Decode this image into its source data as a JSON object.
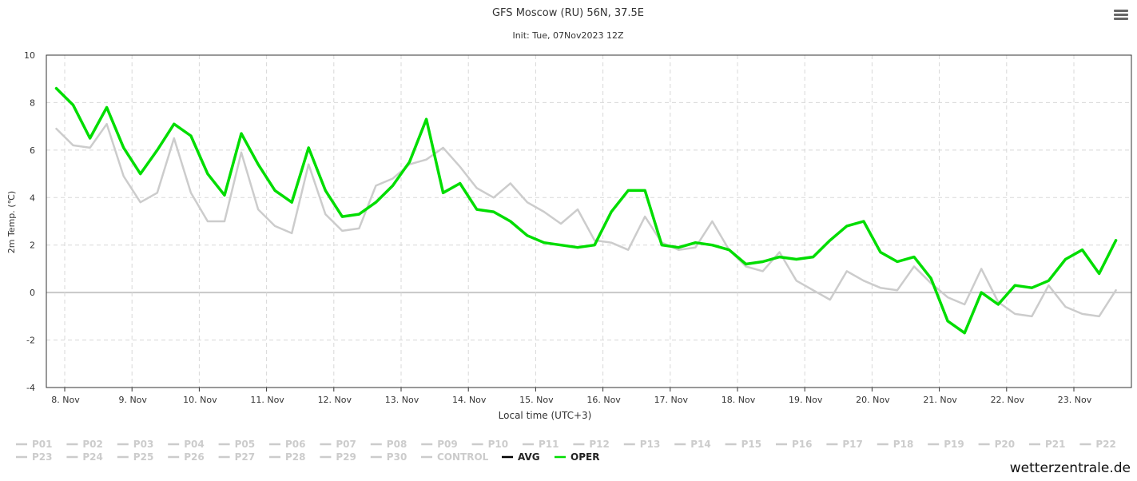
{
  "title": "GFS Moscow (RU) 56N, 37.5E",
  "subtitle": "Init: Tue, 07Nov2023 12Z",
  "watermark": "wetterzentrale.de",
  "menu_icon": "hamburger-menu-icon",
  "colors": {
    "oper": "#00dd00",
    "control": "#cccccc",
    "avg": "#000000",
    "member_legend": "#cccccc",
    "grid": "#d8d8d8",
    "zero_line": "#c8c8c8"
  },
  "chart_data": {
    "type": "line",
    "title": "GFS Moscow (RU) 56N, 37.5E",
    "subtitle": "Init: Tue, 07Nov2023 12Z",
    "xlabel": "Local time (UTC+3)",
    "ylabel": "2m Temp. (℃)",
    "ylim": [
      -4,
      10
    ],
    "yticks": [
      -4,
      -2,
      0,
      2,
      4,
      6,
      8,
      10
    ],
    "x_ticks": [
      "8. Nov",
      "9. Nov",
      "10. Nov",
      "11. Nov",
      "12. Nov",
      "13. Nov",
      "14. Nov",
      "15. Nov",
      "16. Nov",
      "17. Nov",
      "18. Nov",
      "19. Nov",
      "20. Nov",
      "21. Nov",
      "22. Nov",
      "23. Nov"
    ],
    "x_units": "days since 8. Nov 00:00 local",
    "x": [
      -0.125,
      0.125,
      0.375,
      0.625,
      0.875,
      1.125,
      1.375,
      1.625,
      1.875,
      2.125,
      2.375,
      2.625,
      2.875,
      3.125,
      3.375,
      3.625,
      3.875,
      4.125,
      4.375,
      4.625,
      4.875,
      5.125,
      5.375,
      5.625,
      5.875,
      6.125,
      6.375,
      6.625,
      6.875,
      7.125,
      7.375,
      7.625,
      7.875,
      8.125,
      8.375,
      8.625,
      8.875,
      9.125,
      9.375,
      9.625,
      9.875,
      10.125,
      10.375,
      10.625,
      10.875,
      11.125,
      11.375,
      11.625,
      11.875,
      12.125,
      12.375,
      12.625,
      12.875,
      13.125,
      13.375,
      13.625,
      13.875,
      14.125,
      14.375,
      14.625,
      14.875,
      15.125,
      15.375,
      15.625
    ],
    "grid": true,
    "legend_position": "bottom",
    "series": [
      {
        "name": "CONTROL",
        "values": [
          6.9,
          6.2,
          6.1,
          7.1,
          4.9,
          3.8,
          4.2,
          6.5,
          4.2,
          3.0,
          3.0,
          5.9,
          3.5,
          2.8,
          2.5,
          5.4,
          3.3,
          2.6,
          2.7,
          4.5,
          4.8,
          5.4,
          5.6,
          6.1,
          5.3,
          4.4,
          4.0,
          4.6,
          3.8,
          3.4,
          2.9,
          3.5,
          2.2,
          2.1,
          1.8,
          3.2,
          2.1,
          1.8,
          1.9,
          3.0,
          1.8,
          1.1,
          0.9,
          1.7,
          0.5,
          0.1,
          -0.3,
          0.9,
          0.5,
          0.2,
          0.1,
          1.1,
          0.4,
          -0.2,
          -0.5,
          1.0,
          -0.4,
          -0.9,
          -1.0,
          0.3,
          -0.6,
          -0.9,
          -1.0,
          0.1
        ]
      },
      {
        "name": "OPER",
        "values": [
          8.6,
          7.9,
          6.5,
          7.8,
          6.1,
          5.0,
          6.0,
          7.1,
          6.6,
          5.0,
          4.1,
          6.7,
          5.4,
          4.3,
          3.8,
          6.1,
          4.3,
          3.2,
          3.3,
          3.8,
          4.5,
          5.5,
          7.3,
          4.2,
          4.6,
          3.5,
          3.4,
          3.0,
          2.4,
          2.1,
          2.0,
          1.9,
          2.0,
          3.4,
          4.3,
          4.3,
          2.0,
          1.9,
          2.1,
          2.0,
          1.8,
          1.2,
          1.3,
          1.5,
          1.4,
          1.5,
          2.2,
          2.8,
          3.0,
          1.7,
          1.3,
          1.5,
          0.6,
          -1.2,
          -1.7,
          0.0,
          -0.5,
          0.3,
          0.2,
          0.5,
          1.4,
          1.8,
          0.8,
          2.2
        ]
      }
    ]
  },
  "legend": {
    "row1": [
      "P01",
      "P02",
      "P03",
      "P04",
      "P05",
      "P06",
      "P07",
      "P08",
      "P09",
      "P10",
      "P11",
      "P12",
      "P13",
      "P14",
      "P15",
      "P16",
      "P17",
      "P18",
      "P19",
      "P20",
      "P21",
      "P22"
    ],
    "row2": [
      "P23",
      "P24",
      "P25",
      "P26",
      "P27",
      "P28",
      "P29",
      "P30",
      "CONTROL",
      "AVG",
      "OPER"
    ]
  }
}
